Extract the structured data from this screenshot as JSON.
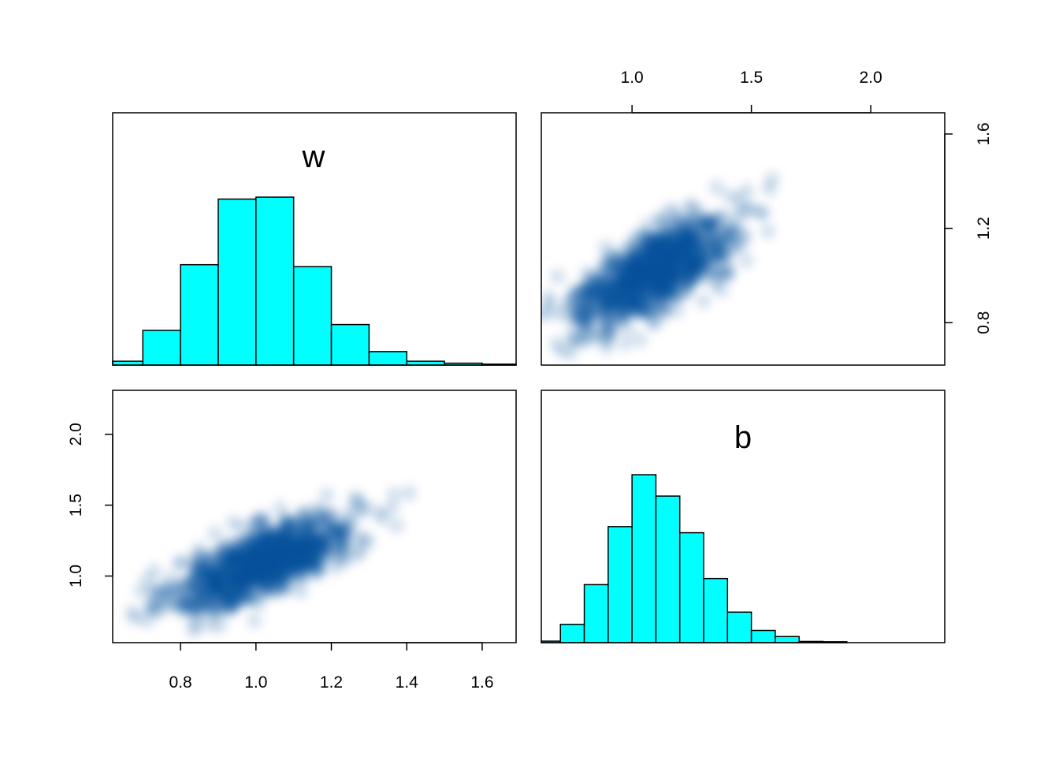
{
  "colors": {
    "hist_fill": "#00FFFF",
    "hist_stroke": "#000000",
    "density": "#08519C",
    "frame": "#000000"
  },
  "chart_data": [
    {
      "panel": "top-left",
      "type": "bar",
      "subtype": "histogram",
      "title": "w",
      "xlim": [
        0.62,
        1.69
      ],
      "bins": [
        {
          "x0": 0.6,
          "x1": 0.7,
          "count": 2
        },
        {
          "x0": 0.7,
          "x1": 0.8,
          "count": 18
        },
        {
          "x0": 0.8,
          "x1": 0.9,
          "count": 52
        },
        {
          "x0": 0.9,
          "x1": 1.0,
          "count": 86
        },
        {
          "x0": 1.0,
          "x1": 1.1,
          "count": 87
        },
        {
          "x0": 1.1,
          "x1": 1.2,
          "count": 51
        },
        {
          "x0": 1.2,
          "x1": 1.3,
          "count": 21
        },
        {
          "x0": 1.3,
          "x1": 1.4,
          "count": 7
        },
        {
          "x0": 1.4,
          "x1": 1.5,
          "count": 2
        },
        {
          "x0": 1.5,
          "x1": 1.6,
          "count": 1
        },
        {
          "x0": 1.6,
          "x1": 1.7,
          "count": 0.5
        }
      ]
    },
    {
      "panel": "top-right",
      "type": "scatter",
      "subtype": "smoothed density",
      "x_variable": "b",
      "y_variable": "w",
      "x_axis_side": "top",
      "y_axis_side": "right",
      "x_ticks": [
        "1.0",
        "1.5",
        "2.0"
      ],
      "y_ticks": [
        "0.8",
        "1.2",
        "1.6"
      ],
      "xlim": [
        0.62,
        2.31
      ],
      "ylim": [
        0.62,
        1.69
      ],
      "mean": [
        1.1,
        1.02
      ],
      "sd": [
        0.17,
        0.12
      ],
      "corr": 0.72
    },
    {
      "panel": "bottom-left",
      "type": "scatter",
      "subtype": "smoothed density",
      "x_variable": "w",
      "y_variable": "b",
      "x_axis_side": "bottom",
      "y_axis_side": "left",
      "x_ticks": [
        "0.8",
        "1.0",
        "1.2",
        "1.4",
        "1.6"
      ],
      "y_ticks": [
        "1.0",
        "1.5",
        "2.0"
      ],
      "xlim": [
        0.62,
        1.69
      ],
      "ylim": [
        0.53,
        2.31
      ],
      "mean": [
        1.02,
        1.1
      ],
      "sd": [
        0.12,
        0.17
      ],
      "corr": 0.72
    },
    {
      "panel": "bottom-right",
      "type": "bar",
      "subtype": "histogram",
      "title": "b",
      "xlim": [
        0.62,
        2.31
      ],
      "bins": [
        {
          "x0": 0.6,
          "x1": 0.7,
          "count": 0.5
        },
        {
          "x0": 0.7,
          "x1": 0.8,
          "count": 6
        },
        {
          "x0": 0.8,
          "x1": 0.9,
          "count": 19
        },
        {
          "x0": 0.9,
          "x1": 1.0,
          "count": 38
        },
        {
          "x0": 1.0,
          "x1": 1.1,
          "count": 55
        },
        {
          "x0": 1.1,
          "x1": 1.2,
          "count": 48
        },
        {
          "x0": 1.2,
          "x1": 1.3,
          "count": 36
        },
        {
          "x0": 1.3,
          "x1": 1.4,
          "count": 21
        },
        {
          "x0": 1.4,
          "x1": 1.5,
          "count": 10
        },
        {
          "x0": 1.5,
          "x1": 1.6,
          "count": 4
        },
        {
          "x0": 1.6,
          "x1": 1.7,
          "count": 2
        },
        {
          "x0": 1.7,
          "x1": 1.8,
          "count": 0.4
        },
        {
          "x0": 1.8,
          "x1": 1.9,
          "count": 0.3
        }
      ]
    }
  ]
}
